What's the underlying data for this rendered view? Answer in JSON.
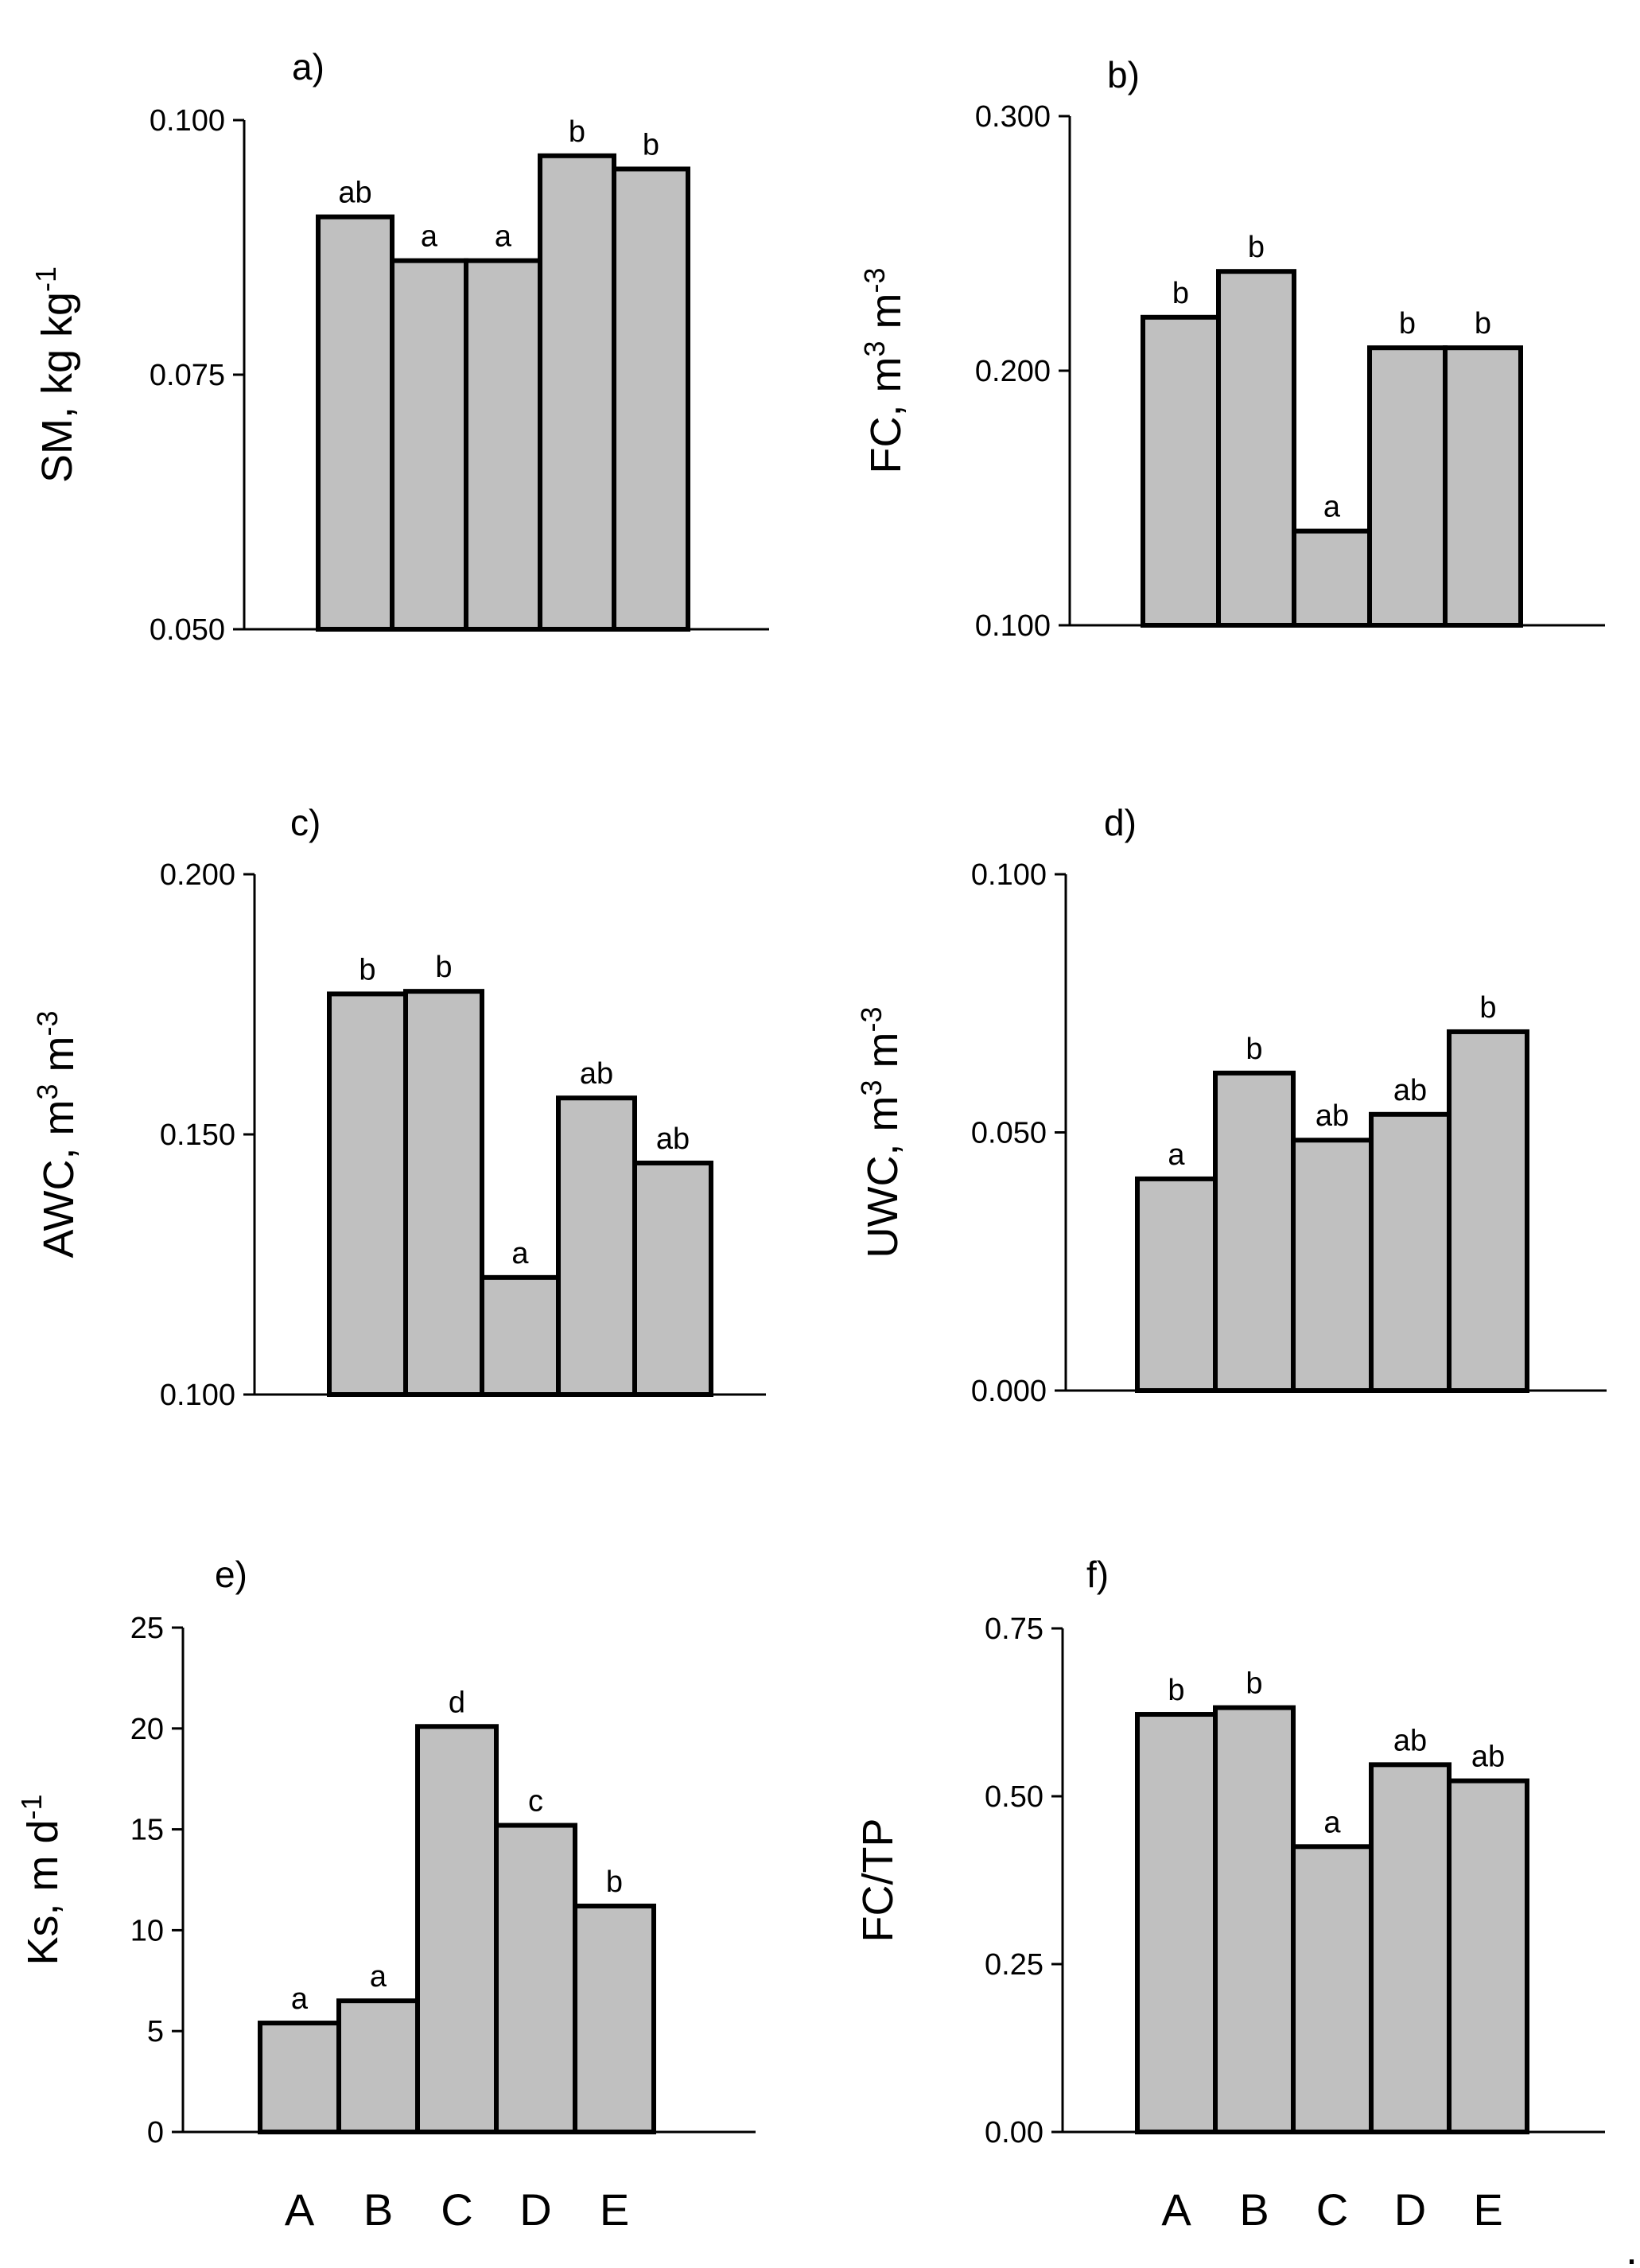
{
  "figure": {
    "trailing_mark": "."
  },
  "chart_data": [
    {
      "panel": "a)",
      "type": "bar",
      "ylabel": "SM, kg kg",
      "ylabel_superscript": "-1",
      "categories": [
        "A",
        "B",
        "C",
        "D",
        "E"
      ],
      "values": [
        0.0905,
        0.0862,
        0.0862,
        0.0965,
        0.0952
      ],
      "significance": [
        "ab",
        "a",
        "a",
        "b",
        "b"
      ],
      "ylim": [
        0.05,
        0.1
      ],
      "yticks": [
        0.05,
        0.075,
        0.1
      ],
      "ytick_labels": [
        "0.050",
        "0.075",
        "0.100"
      ],
      "show_xlabels": false
    },
    {
      "panel": "b)",
      "type": "bar",
      "ylabel": "FC, m",
      "ylabel_superscript": "3",
      "ylabel_suffix": " m",
      "ylabel_suffix_superscript": "-3",
      "categories": [
        "A",
        "B",
        "C",
        "D",
        "E"
      ],
      "values": [
        0.221,
        0.239,
        0.137,
        0.209,
        0.209
      ],
      "significance": [
        "b",
        "b",
        "a",
        "b",
        "b"
      ],
      "ylim": [
        0.1,
        0.3
      ],
      "yticks": [
        0.1,
        0.2,
        0.3
      ],
      "ytick_labels": [
        "0.100",
        "0.200",
        "0.300"
      ],
      "show_xlabels": false
    },
    {
      "panel": "c)",
      "type": "bar",
      "ylabel": "AWC, m",
      "ylabel_superscript": "3",
      "ylabel_suffix": " m",
      "ylabel_suffix_superscript": "-3",
      "categories": [
        "A",
        "B",
        "C",
        "D",
        "E"
      ],
      "values": [
        0.177,
        0.1775,
        0.1225,
        0.157,
        0.1445
      ],
      "significance": [
        "b",
        "b",
        "a",
        "ab",
        "ab"
      ],
      "ylim": [
        0.1,
        0.2
      ],
      "yticks": [
        0.1,
        0.15,
        0.2
      ],
      "ytick_labels": [
        "0.100",
        "0.150",
        "0.200"
      ],
      "show_xlabels": false
    },
    {
      "panel": "d)",
      "type": "bar",
      "ylabel": "UWC, m",
      "ylabel_superscript": "3",
      "ylabel_suffix": " m",
      "ylabel_suffix_superscript": "-3",
      "categories": [
        "A",
        "B",
        "C",
        "D",
        "E"
      ],
      "values": [
        0.041,
        0.0615,
        0.0485,
        0.0535,
        0.0695
      ],
      "significance": [
        "a",
        "b",
        "ab",
        "ab",
        "b"
      ],
      "ylim": [
        0,
        0.1
      ],
      "yticks": [
        0,
        0.05,
        0.1
      ],
      "ytick_labels": [
        "0.000",
        "0.050",
        "0.100"
      ],
      "show_xlabels": false
    },
    {
      "panel": "e)",
      "type": "bar",
      "ylabel": "Ks, m d",
      "ylabel_superscript": "-1",
      "categories": [
        "A",
        "B",
        "C",
        "D",
        "E"
      ],
      "values": [
        5.4,
        6.5,
        20.1,
        15.2,
        11.2
      ],
      "significance": [
        "a",
        "a",
        "d",
        "c",
        "b"
      ],
      "ylim": [
        0,
        25
      ],
      "yticks": [
        0,
        5,
        10,
        15,
        20,
        25
      ],
      "ytick_labels": [
        "0",
        "5",
        "10",
        "15",
        "20",
        "25"
      ],
      "show_xlabels": true
    },
    {
      "panel": "f)",
      "type": "bar",
      "ylabel": "FC/TP",
      "categories": [
        "A",
        "B",
        "C",
        "D",
        "E"
      ],
      "values": [
        0.622,
        0.632,
        0.425,
        0.547,
        0.523
      ],
      "significance": [
        "b",
        "b",
        "a",
        "ab",
        "ab"
      ],
      "ylim": [
        0,
        0.75
      ],
      "yticks": [
        0,
        0.25,
        0.5,
        0.75
      ],
      "ytick_labels": [
        "0.00",
        "0.25",
        "0.50",
        "0.75"
      ],
      "show_xlabels": true
    }
  ]
}
